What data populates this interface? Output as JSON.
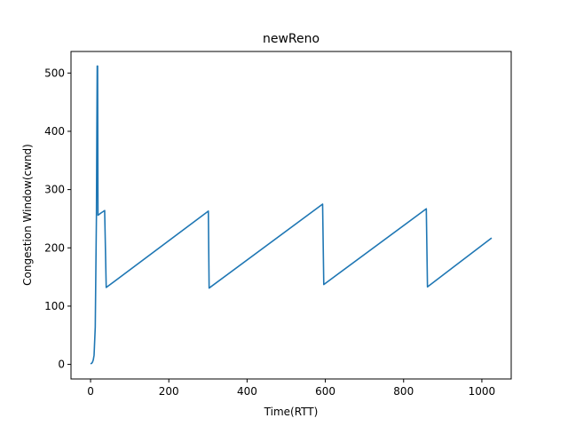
{
  "chart_data": {
    "type": "line",
    "title": "newReno",
    "xlabel": "Time(RTT)",
    "ylabel": "Congestion Window(cwnd)",
    "xlim": [
      -50,
      1075
    ],
    "ylim": [
      -25,
      537
    ],
    "xticks": [
      0,
      200,
      400,
      600,
      800,
      1000
    ],
    "yticks": [
      0,
      100,
      200,
      300,
      400,
      500
    ],
    "grid": false,
    "legend": "none",
    "series": [
      {
        "color": "#1f77b4",
        "points": [
          [
            0,
            1
          ],
          [
            3,
            2
          ],
          [
            5,
            4
          ],
          [
            7,
            8
          ],
          [
            9,
            16
          ],
          [
            10,
            32
          ],
          [
            12,
            64
          ],
          [
            13,
            128
          ],
          [
            15,
            256
          ],
          [
            16,
            400
          ],
          [
            17,
            512
          ],
          [
            18,
            512
          ],
          [
            19,
            256
          ],
          [
            27,
            260
          ],
          [
            36,
            264
          ],
          [
            40,
            132
          ],
          [
            301,
            263
          ],
          [
            303,
            131
          ],
          [
            593,
            275
          ],
          [
            596,
            137
          ],
          [
            858,
            267
          ],
          [
            861,
            133
          ],
          [
            1025,
            217
          ]
        ]
      }
    ]
  }
}
